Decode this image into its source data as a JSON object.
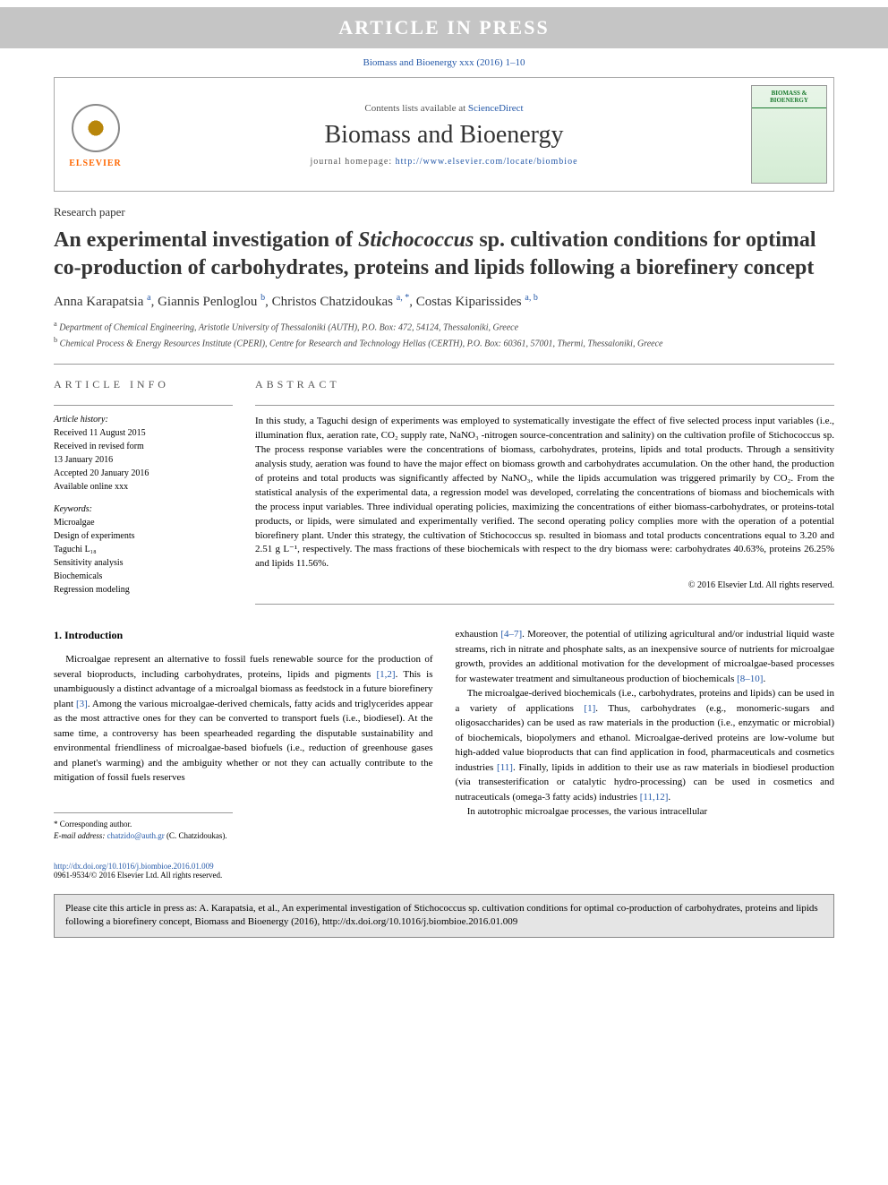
{
  "banner": "ARTICLE IN PRESS",
  "citation": "Biomass and Bioenergy xxx (2016) 1–10",
  "header": {
    "contents_prefix": "Contents lists available at ",
    "contents_link": "ScienceDirect",
    "journal_name": "Biomass and Bioenergy",
    "homepage_prefix": "journal homepage: ",
    "homepage_url": "http://www.elsevier.com/locate/biombioe",
    "publisher_name": "ELSEVIER",
    "cover_title": "BIOMASS & BIOENERGY"
  },
  "article": {
    "type": "Research paper",
    "title_pre": "An experimental investigation of ",
    "title_em": "Stichococcus",
    "title_post": " sp. cultivation conditions for optimal co-production of carbohydrates, proteins and lipids following a biorefinery concept",
    "authors_html": "Anna Karapatsia <sup>a</sup>, Giannis Penloglou <sup>b</sup>, Christos Chatzidoukas <sup>a, *</sup>, Costas Kiparissides <sup>a, b</sup>",
    "affiliations": [
      {
        "sup": "a",
        "text": " Department of Chemical Engineering, Aristotle University of Thessaloniki (AUTH), P.O. Box: 472, 54124, Thessaloniki, Greece"
      },
      {
        "sup": "b",
        "text": " Chemical Process & Energy Resources Institute (CPERI), Centre for Research and Technology Hellas (CERTH), P.O. Box: 60361, 57001, Thermi, Thessaloniki, Greece"
      }
    ]
  },
  "info": {
    "section_label": "ARTICLE INFO",
    "history_label": "Article history:",
    "history": [
      "Received 11 August 2015",
      "Received in revised form",
      "13 January 2016",
      "Accepted 20 January 2016",
      "Available online xxx"
    ],
    "keywords_label": "Keywords:",
    "keywords": [
      "Microalgae",
      "Design of experiments",
      "Taguchi L₁₈",
      "Sensitivity analysis",
      "Biochemicals",
      "Regression modeling"
    ]
  },
  "abstract": {
    "label": "ABSTRACT",
    "text": "In this study, a Taguchi design of experiments was employed to systematically investigate the effect of five selected process input variables (i.e., illumination flux, aeration rate, CO₂ supply rate, NaNO₃ -nitrogen source-concentration and salinity) on the cultivation profile of Stichococcus sp. The process response variables were the concentrations of biomass, carbohydrates, proteins, lipids and total products. Through a sensitivity analysis study, aeration was found to have the major effect on biomass growth and carbohydrates accumulation. On the other hand, the production of proteins and total products was significantly affected by NaNO₃, while the lipids accumulation was triggered primarily by CO₂. From the statistical analysis of the experimental data, a regression model was developed, correlating the concentrations of biomass and biochemicals with the process input variables. Three individual operating policies, maximizing the concentrations of either biomass-carbohydrates, or proteins-total products, or lipids, were simulated and experimentally verified. The second operating policy complies more with the operation of a potential biorefinery plant. Under this strategy, the cultivation of Stichococcus sp. resulted in biomass and total products concentrations equal to 3.20 and 2.51 g L⁻¹, respectively. The mass fractions of these biochemicals with respect to the dry biomass were: carbohydrates 40.63%, proteins 26.25% and lipids 11.56%.",
    "copyright": "© 2016 Elsevier Ltd. All rights reserved."
  },
  "body": {
    "intro_heading": "1. Introduction",
    "p1_a": "Microalgae represent an alternative to fossil fuels renewable source for the production of several bioproducts, including carbohydrates, proteins, lipids and pigments ",
    "p1_ref1": "[1,2]",
    "p1_b": ". This is unambiguously a distinct advantage of a microalgal biomass as feedstock in a future biorefinery plant ",
    "p1_ref2": "[3]",
    "p1_c": ". Among the various microalgae-derived chemicals, fatty acids and triglycerides appear as the most attractive ones for they can be converted to transport fuels (i.e., biodiesel). At the same time, a controversy has been spearheaded regarding the disputable sustainability and environmental friendliness of microalgae-based biofuels (i.e., reduction of greenhouse gases and planet's warming) and the ambiguity whether or not they can actually contribute to the mitigation of fossil fuels reserves",
    "p1_d": "exhaustion ",
    "p1_ref3": "[4–7]",
    "p1_e": ". Moreover, the potential of utilizing agricultural and/or industrial liquid waste streams, rich in nitrate and phosphate salts, as an inexpensive source of nutrients for microalgae growth, provides an additional motivation for the development of microalgae-based processes for wastewater treatment and simultaneous production of biochemicals ",
    "p1_ref4": "[8–10]",
    "p1_f": ".",
    "p2_a": "The microalgae-derived biochemicals (i.e., carbohydrates, proteins and lipids) can be used in a variety of applications ",
    "p2_ref1": "[1]",
    "p2_b": ". Thus, carbohydrates (e.g., monomeric-sugars and oligosaccharides) can be used as raw materials in the production (i.e., enzymatic or microbial) of biochemicals, biopolymers and ethanol. Microalgae-derived proteins are low-volume but high-added value bioproducts that can find application in food, pharmaceuticals and cosmetics industries ",
    "p2_ref2": "[11]",
    "p2_c": ". Finally, lipids in addition to their use as raw materials in biodiesel production (via transesterification or catalytic hydro-processing) can be used in cosmetics and nutraceuticals (omega-3 fatty acids) industries ",
    "p2_ref3": "[11,12]",
    "p2_d": ".",
    "p3": "In autotrophic microalgae processes, the various intracellular"
  },
  "corresponding": {
    "star": "* Corresponding author.",
    "email_label": "E-mail address: ",
    "email": "chatzido@auth.gr",
    "email_suffix": " (C. Chatzidoukas)."
  },
  "doi": {
    "url": "http://dx.doi.org/10.1016/j.biombioe.2016.01.009",
    "rights": "0961-9534/© 2016 Elsevier Ltd. All rights reserved."
  },
  "cite_box": "Please cite this article in press as: A. Karapatsia, et al., An experimental investigation of Stichococcus sp. cultivation conditions for optimal co-production of carbohydrates, proteins and lipids following a biorefinery concept, Biomass and Bioenergy (2016), http://dx.doi.org/10.1016/j.biombioe.2016.01.009"
}
